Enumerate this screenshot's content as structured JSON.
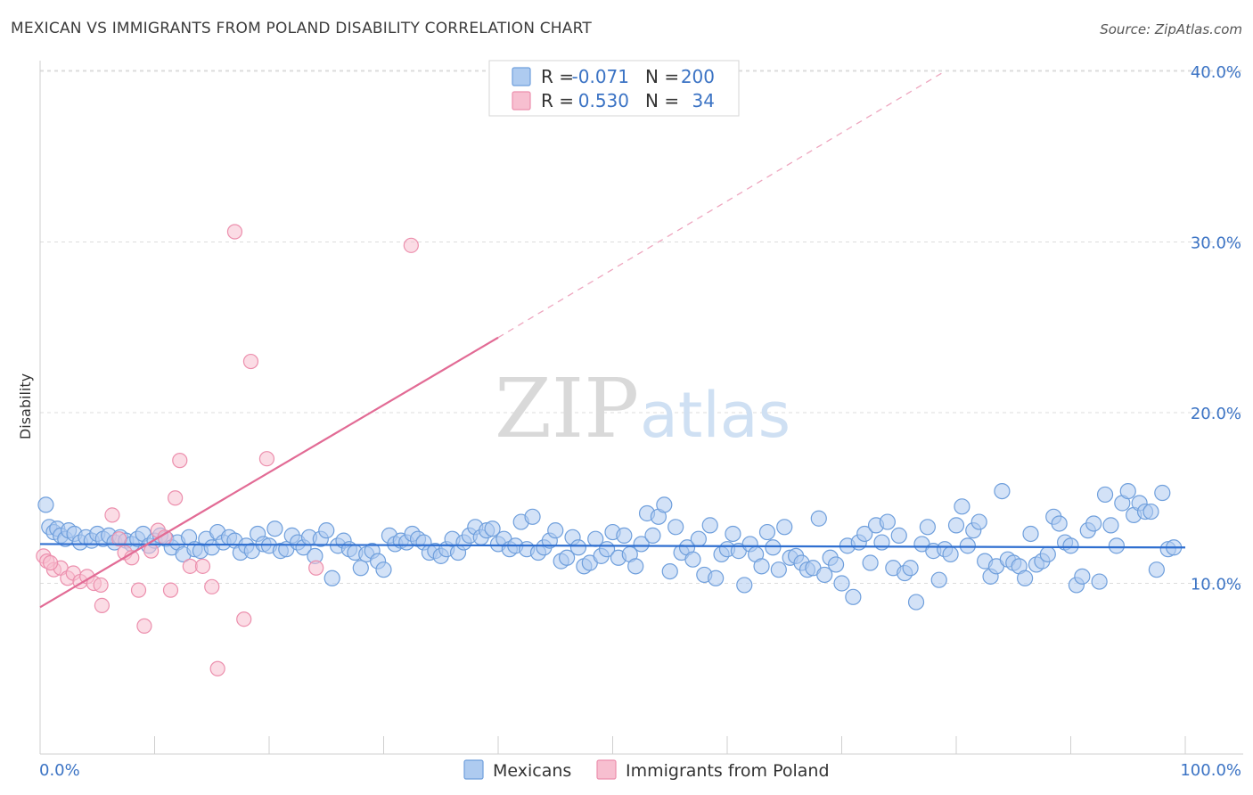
{
  "title": "MEXICAN VS IMMIGRANTS FROM POLAND DISABILITY CORRELATION CHART",
  "source": "Source: ZipAtlas.com",
  "watermark": {
    "zip": "ZIP",
    "atlas": "atlas"
  },
  "colors": {
    "blue_fill": "#aecbf0",
    "blue_stroke": "#6f9fdc",
    "blue_line": "#2f6fd0",
    "pink_fill": "#f7bfd0",
    "pink_stroke": "#ec8fad",
    "pink_line": "#e26b95",
    "label_blue": "#3b73c4"
  },
  "legend": {
    "rows": [
      {
        "r_label": "R =",
        "r_value": "-0.071",
        "n_label": "N =",
        "n_value": "200"
      },
      {
        "r_label": "R =",
        "r_value": "0.530",
        "n_label": "N =",
        "n_value": "34"
      }
    ]
  },
  "chart_data": {
    "type": "scatter",
    "title": "MEXICAN VS IMMIGRANTS FROM POLAND DISABILITY CORRELATION CHART",
    "xlabel": "",
    "ylabel": "Disability",
    "xlim": [
      0,
      100
    ],
    "ylim": [
      0,
      41.5
    ],
    "x_tick_labels": [
      "0.0%",
      "100.0%"
    ],
    "y_ticks": [
      10,
      20,
      30,
      40
    ],
    "y_tick_labels": [
      "10.0%",
      "20.0%",
      "30.0%",
      "40.0%"
    ],
    "grid": "horizontal dashed",
    "legend_position": "bottom",
    "series": [
      {
        "name": "Mexicans",
        "color": "#aecbf0",
        "trend": {
          "x": [
            0,
            100
          ],
          "y": [
            12.3,
            12.1
          ]
        },
        "points": [
          [
            0.5,
            14.6
          ],
          [
            0.8,
            13.3
          ],
          [
            1.2,
            13.0
          ],
          [
            1.5,
            13.2
          ],
          [
            1.8,
            12.8
          ],
          [
            2.2,
            12.6
          ],
          [
            2.5,
            13.1
          ],
          [
            3.0,
            12.9
          ],
          [
            3.5,
            12.4
          ],
          [
            4.0,
            12.7
          ],
          [
            4.5,
            12.5
          ],
          [
            5.0,
            12.9
          ],
          [
            5.5,
            12.6
          ],
          [
            6.0,
            12.8
          ],
          [
            6.5,
            12.4
          ],
          [
            7.0,
            12.7
          ],
          [
            7.5,
            12.5
          ],
          [
            8.0,
            12.3
          ],
          [
            8.5,
            12.6
          ],
          [
            9.0,
            12.9
          ],
          [
            9.5,
            12.2
          ],
          [
            10.0,
            12.5
          ],
          [
            10.5,
            12.8
          ],
          [
            11.0,
            12.6
          ],
          [
            11.5,
            12.1
          ],
          [
            12.0,
            12.4
          ],
          [
            12.5,
            11.7
          ],
          [
            13.0,
            12.7
          ],
          [
            13.5,
            12.0
          ],
          [
            14.0,
            11.9
          ],
          [
            14.5,
            12.6
          ],
          [
            15.0,
            12.1
          ],
          [
            15.5,
            13.0
          ],
          [
            16.0,
            12.4
          ],
          [
            16.5,
            12.7
          ],
          [
            17.0,
            12.5
          ],
          [
            17.5,
            11.8
          ],
          [
            18.0,
            12.2
          ],
          [
            18.5,
            11.9
          ],
          [
            19.0,
            12.9
          ],
          [
            19.5,
            12.3
          ],
          [
            20.0,
            12.2
          ],
          [
            20.5,
            13.2
          ],
          [
            21.0,
            11.9
          ],
          [
            21.5,
            12.0
          ],
          [
            22.0,
            12.8
          ],
          [
            22.5,
            12.4
          ],
          [
            23.0,
            12.1
          ],
          [
            23.5,
            12.7
          ],
          [
            24.0,
            11.6
          ],
          [
            24.5,
            12.6
          ],
          [
            25.0,
            13.1
          ],
          [
            25.5,
            10.3
          ],
          [
            26.0,
            12.2
          ],
          [
            26.5,
            12.5
          ],
          [
            27.0,
            12.0
          ],
          [
            27.5,
            11.8
          ],
          [
            28.0,
            10.9
          ],
          [
            28.5,
            11.7
          ],
          [
            29.0,
            11.9
          ],
          [
            29.5,
            11.3
          ],
          [
            30.0,
            10.8
          ],
          [
            30.5,
            12.8
          ],
          [
            31.0,
            12.3
          ],
          [
            31.5,
            12.5
          ],
          [
            32.0,
            12.4
          ],
          [
            32.5,
            12.9
          ],
          [
            33.0,
            12.6
          ],
          [
            33.5,
            12.4
          ],
          [
            34.0,
            11.8
          ],
          [
            34.5,
            11.9
          ],
          [
            35.0,
            11.6
          ],
          [
            35.5,
            12.0
          ],
          [
            36.0,
            12.6
          ],
          [
            36.5,
            11.8
          ],
          [
            37.0,
            12.4
          ],
          [
            37.5,
            12.8
          ],
          [
            38.0,
            13.3
          ],
          [
            38.5,
            12.7
          ],
          [
            39.0,
            13.1
          ],
          [
            39.5,
            13.2
          ],
          [
            40.0,
            12.3
          ],
          [
            40.5,
            12.6
          ],
          [
            41.0,
            12.0
          ],
          [
            41.5,
            12.2
          ],
          [
            42.0,
            13.6
          ],
          [
            42.5,
            12.0
          ],
          [
            43.0,
            13.9
          ],
          [
            43.5,
            11.8
          ],
          [
            44.0,
            12.1
          ],
          [
            44.5,
            12.5
          ],
          [
            45.0,
            13.1
          ],
          [
            45.5,
            11.3
          ],
          [
            46.0,
            11.5
          ],
          [
            46.5,
            12.7
          ],
          [
            47.0,
            12.1
          ],
          [
            47.5,
            11.0
          ],
          [
            48.0,
            11.2
          ],
          [
            48.5,
            12.6
          ],
          [
            49.0,
            11.6
          ],
          [
            49.5,
            12.0
          ],
          [
            50.0,
            13.0
          ],
          [
            50.5,
            11.5
          ],
          [
            51.0,
            12.8
          ],
          [
            51.5,
            11.7
          ],
          [
            52.0,
            11.0
          ],
          [
            52.5,
            12.3
          ],
          [
            53.0,
            14.1
          ],
          [
            53.5,
            12.8
          ],
          [
            54.0,
            13.9
          ],
          [
            54.5,
            14.6
          ],
          [
            55.0,
            10.7
          ],
          [
            55.5,
            13.3
          ],
          [
            56.0,
            11.8
          ],
          [
            56.5,
            12.1
          ],
          [
            57.0,
            11.4
          ],
          [
            57.5,
            12.6
          ],
          [
            58.0,
            10.5
          ],
          [
            58.5,
            13.4
          ],
          [
            59.0,
            10.3
          ],
          [
            59.5,
            11.7
          ],
          [
            60.0,
            12.0
          ],
          [
            60.5,
            12.9
          ],
          [
            61.0,
            11.9
          ],
          [
            61.5,
            9.9
          ],
          [
            62.0,
            12.3
          ],
          [
            62.5,
            11.7
          ],
          [
            63.0,
            11.0
          ],
          [
            63.5,
            13.0
          ],
          [
            64.0,
            12.1
          ],
          [
            64.5,
            10.8
          ],
          [
            65.0,
            13.3
          ],
          [
            65.5,
            11.5
          ],
          [
            66.0,
            11.6
          ],
          [
            66.5,
            11.2
          ],
          [
            67.0,
            10.8
          ],
          [
            67.5,
            10.9
          ],
          [
            68.0,
            13.8
          ],
          [
            68.5,
            10.5
          ],
          [
            69.0,
            11.5
          ],
          [
            69.5,
            11.1
          ],
          [
            70.0,
            10.0
          ],
          [
            70.5,
            12.2
          ],
          [
            71.0,
            9.2
          ],
          [
            71.5,
            12.4
          ],
          [
            72.0,
            12.9
          ],
          [
            72.5,
            11.2
          ],
          [
            73.0,
            13.4
          ],
          [
            73.5,
            12.4
          ],
          [
            74.0,
            13.6
          ],
          [
            74.5,
            10.9
          ],
          [
            75.0,
            12.8
          ],
          [
            75.5,
            10.6
          ],
          [
            76.0,
            10.9
          ],
          [
            76.5,
            8.9
          ],
          [
            77.0,
            12.3
          ],
          [
            77.5,
            13.3
          ],
          [
            78.0,
            11.9
          ],
          [
            78.5,
            10.2
          ],
          [
            79.0,
            12.0
          ],
          [
            79.5,
            11.7
          ],
          [
            80.0,
            13.4
          ],
          [
            80.5,
            14.5
          ],
          [
            81.0,
            12.2
          ],
          [
            81.5,
            13.1
          ],
          [
            82.0,
            13.6
          ],
          [
            82.5,
            11.3
          ],
          [
            83.0,
            10.4
          ],
          [
            83.5,
            11.0
          ],
          [
            84.0,
            15.4
          ],
          [
            84.5,
            11.4
          ],
          [
            85.0,
            11.2
          ],
          [
            85.5,
            11.0
          ],
          [
            86.0,
            10.3
          ],
          [
            86.5,
            12.9
          ],
          [
            87.0,
            11.1
          ],
          [
            87.5,
            11.3
          ],
          [
            88.0,
            11.7
          ],
          [
            88.5,
            13.9
          ],
          [
            89.0,
            13.5
          ],
          [
            89.5,
            12.4
          ],
          [
            90.0,
            12.2
          ],
          [
            90.5,
            9.9
          ],
          [
            91.0,
            10.4
          ],
          [
            91.5,
            13.1
          ],
          [
            92.0,
            13.5
          ],
          [
            92.5,
            10.1
          ],
          [
            93.0,
            15.2
          ],
          [
            93.5,
            13.4
          ],
          [
            94.0,
            12.2
          ],
          [
            94.5,
            14.7
          ],
          [
            95.0,
            15.4
          ],
          [
            95.5,
            14.0
          ],
          [
            96.0,
            14.7
          ],
          [
            96.5,
            14.2
          ],
          [
            97.0,
            14.2
          ],
          [
            97.5,
            10.8
          ],
          [
            98.0,
            15.3
          ],
          [
            98.5,
            12.0
          ],
          [
            99.0,
            12.1
          ]
        ]
      },
      {
        "name": "Immigrants from Poland",
        "color": "#f7bfd0",
        "trend": {
          "x": [
            0,
            40
          ],
          "y": [
            8.6,
            24.4
          ]
        },
        "trend_dashed": {
          "x": [
            40,
            79
          ],
          "y": [
            24.4,
            40.0
          ]
        },
        "points": [
          [
            0.3,
            11.6
          ],
          [
            0.6,
            11.3
          ],
          [
            1.2,
            10.8
          ],
          [
            1.8,
            10.9
          ],
          [
            2.4,
            10.3
          ],
          [
            2.9,
            10.6
          ],
          [
            3.5,
            10.1
          ],
          [
            4.1,
            10.4
          ],
          [
            4.7,
            10.0
          ],
          [
            5.3,
            9.9
          ],
          [
            5.4,
            8.7
          ],
          [
            6.3,
            14.0
          ],
          [
            6.9,
            12.6
          ],
          [
            7.4,
            11.8
          ],
          [
            8.0,
            11.5
          ],
          [
            8.6,
            9.6
          ],
          [
            9.1,
            7.5
          ],
          [
            9.7,
            11.9
          ],
          [
            10.3,
            13.1
          ],
          [
            10.9,
            12.7
          ],
          [
            11.4,
            9.6
          ],
          [
            11.8,
            15.0
          ],
          [
            12.2,
            17.2
          ],
          [
            13.1,
            11.0
          ],
          [
            14.2,
            11.0
          ],
          [
            15.0,
            9.8
          ],
          [
            15.5,
            5.0
          ],
          [
            17.0,
            30.6
          ],
          [
            17.8,
            7.9
          ],
          [
            18.4,
            23.0
          ],
          [
            19.8,
            17.3
          ],
          [
            24.1,
            10.9
          ],
          [
            32.4,
            29.8
          ],
          [
            0.9,
            11.2
          ]
        ]
      }
    ]
  },
  "bottom_legend": {
    "items": [
      {
        "label": "Mexicans"
      },
      {
        "label": "Immigrants from Poland"
      }
    ]
  }
}
